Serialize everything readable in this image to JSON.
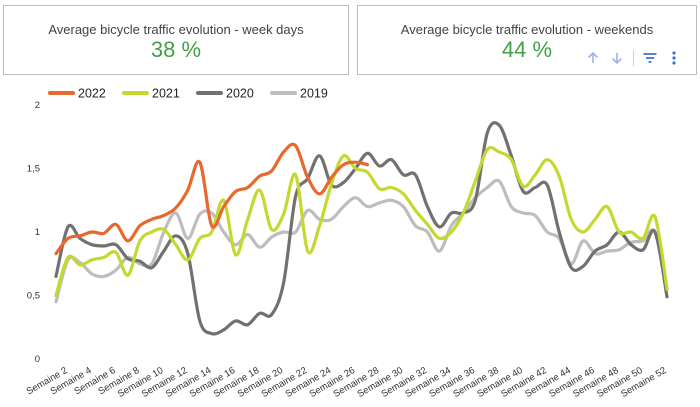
{
  "cards": {
    "weekdays": {
      "title": "Average bicycle traffic evolution - week days",
      "value": "38 %"
    },
    "weekends": {
      "title": "Average bicycle traffic evolution - weekends",
      "value": "44 %"
    }
  },
  "toolbar": {
    "icons": [
      "arrow-up-icon",
      "arrow-down-icon",
      "filter-icon",
      "more-vert-icon"
    ],
    "icon_color": "#9fb2e6"
  },
  "colors": {
    "kpi_value": "#43a047"
  },
  "chart_data": {
    "type": "line",
    "x_start": 1,
    "x_end": 52,
    "x_tick_labels": [
      "Semaine 2",
      "Semaine 4",
      "Semaine 6",
      "Semaine 8",
      "Semaine 10",
      "Semaine 12",
      "Semaine 14",
      "Semaine 16",
      "Semaine 18",
      "Semaine 20",
      "Semaine 22",
      "Semaine 24",
      "Semaine 26",
      "Semaine 28",
      "Semaine 30",
      "Semaine 32",
      "Semaine 34",
      "Semaine 36",
      "Semaine 38",
      "Semaine 40",
      "Semaine 42",
      "Semaine 44",
      "Semaine 46",
      "Semaine 48",
      "Semaine 50",
      "Semaine 52"
    ],
    "y_ticks": [
      "0",
      "0,5",
      "1",
      "1,5",
      "2"
    ],
    "ylim": [
      0,
      2
    ],
    "legend_position": "top-left",
    "grid": false,
    "series": [
      {
        "name": "2022",
        "color": "#e8692e",
        "width": 3.2,
        "values": [
          0.83,
          0.95,
          0.97,
          1.0,
          0.99,
          1.06,
          0.93,
          1.05,
          1.1,
          1.13,
          1.19,
          1.33,
          1.55,
          1.05,
          1.2,
          1.32,
          1.35,
          1.44,
          1.48,
          1.63,
          1.68,
          1.43,
          1.3,
          1.43,
          1.53,
          1.55,
          1.53
        ]
      },
      {
        "name": "2021",
        "color": "#c5d82f",
        "width": 3.2,
        "values": [
          0.5,
          0.8,
          0.74,
          0.78,
          0.8,
          0.84,
          0.66,
          0.93,
          1.0,
          1.02,
          0.9,
          0.78,
          0.95,
          1.0,
          1.25,
          0.82,
          1.1,
          1.33,
          1.02,
          1.14,
          1.45,
          0.85,
          1.05,
          1.38,
          1.6,
          1.5,
          1.47,
          1.34,
          1.35,
          1.3,
          1.17,
          1.06,
          0.95,
          1.0,
          1.15,
          1.4,
          1.65,
          1.63,
          1.57,
          1.36,
          1.45,
          1.57,
          1.44,
          1.1,
          1.0,
          1.1,
          1.2,
          1.0,
          1.0,
          0.95,
          1.12,
          0.55
        ]
      },
      {
        "name": "2020",
        "color": "#717171",
        "width": 3.2,
        "values": [
          0.65,
          1.04,
          0.95,
          0.9,
          0.89,
          0.9,
          0.79,
          0.77,
          0.72,
          0.85,
          0.97,
          0.83,
          0.3,
          0.2,
          0.23,
          0.3,
          0.27,
          0.36,
          0.35,
          0.6,
          1.28,
          1.42,
          1.6,
          1.37,
          1.39,
          1.5,
          1.62,
          1.52,
          1.57,
          1.45,
          1.45,
          1.2,
          1.04,
          1.15,
          1.15,
          1.25,
          1.78,
          1.84,
          1.6,
          1.32,
          1.35,
          1.37,
          1.0,
          0.72,
          0.73,
          0.85,
          0.9,
          1.0,
          0.9,
          0.86,
          1.0,
          0.49
        ]
      },
      {
        "name": "2019",
        "color": "#bdbdbd",
        "width": 3.2,
        "values": [
          0.45,
          0.78,
          0.76,
          0.67,
          0.65,
          0.7,
          0.8,
          0.75,
          0.75,
          1.0,
          1.15,
          0.95,
          1.14,
          1.15,
          1.0,
          0.9,
          0.98,
          0.88,
          0.96,
          1.0,
          1.0,
          1.17,
          1.1,
          1.1,
          1.2,
          1.27,
          1.2,
          1.23,
          1.25,
          1.2,
          1.05,
          1.0,
          0.85,
          1.05,
          1.15,
          1.27,
          1.35,
          1.4,
          1.2,
          1.15,
          1.13,
          1.0,
          0.95,
          0.75,
          0.93,
          0.83,
          0.85,
          0.86,
          0.92,
          0.93,
          1.0,
          0.55
        ]
      }
    ]
  }
}
